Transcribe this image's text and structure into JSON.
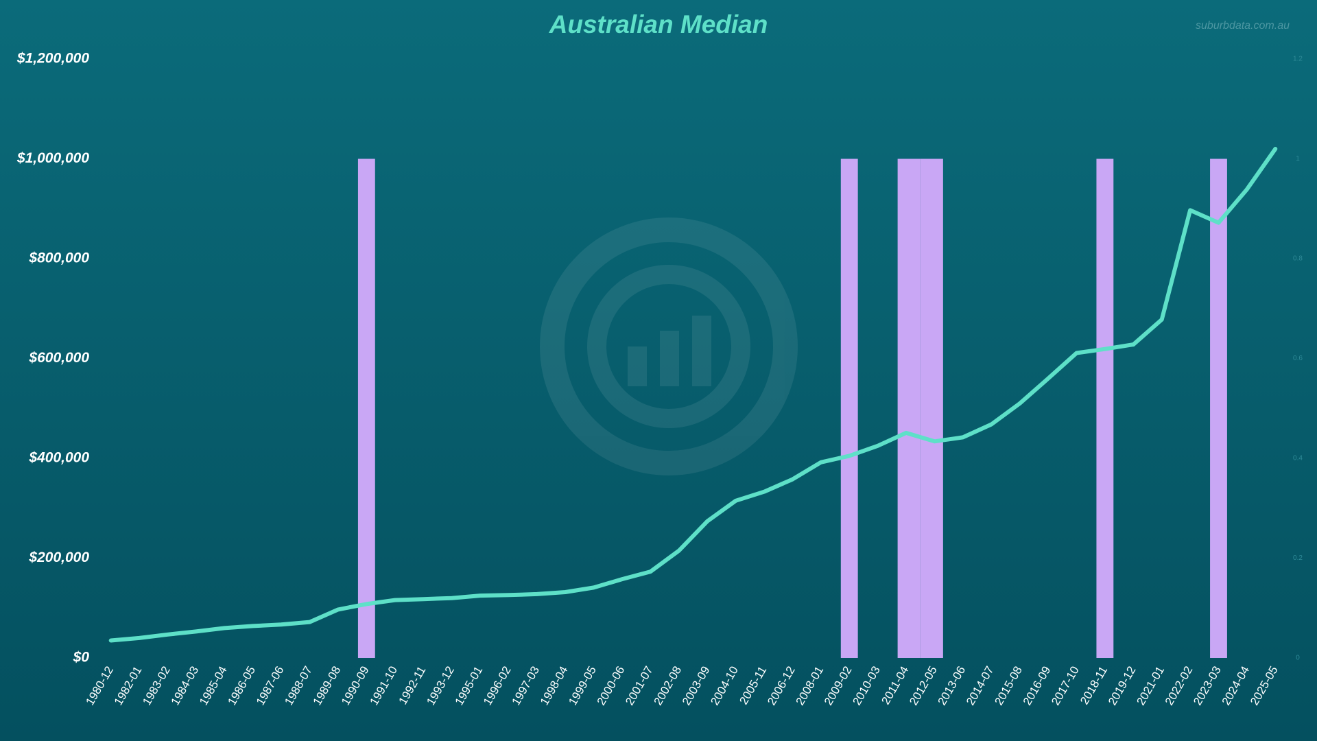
{
  "chart_data": {
    "type": "line",
    "title": "Australian Median",
    "watermark": "suburbdata.com.au",
    "categories": [
      "1980-12",
      "1982-01",
      "1983-02",
      "1984-03",
      "1985-04",
      "1986-05",
      "1987-06",
      "1988-07",
      "1989-08",
      "1990-09",
      "1991-10",
      "1992-11",
      "1993-12",
      "1995-01",
      "1996-02",
      "1997-03",
      "1998-04",
      "1999-05",
      "2000-06",
      "2001-07",
      "2002-08",
      "2003-09",
      "2004-10",
      "2005-11",
      "2006-12",
      "2008-01",
      "2009-02",
      "2010-03",
      "2011-04",
      "2012-05",
      "2013-06",
      "2014-07",
      "2015-08",
      "2016-09",
      "2017-10",
      "2018-11",
      "2019-12",
      "2021-01",
      "2022-02",
      "2023-03",
      "2024-04",
      "2025-05"
    ],
    "series": [
      {
        "type": "line",
        "color": "#5ee0c8",
        "values": [
          35000,
          40000,
          47000,
          53000,
          60000,
          64000,
          67000,
          72000,
          97000,
          108000,
          116000,
          118000,
          120000,
          125000,
          126000,
          128000,
          132000,
          141000,
          158000,
          173000,
          215000,
          274000,
          315000,
          333000,
          358000,
          392000,
          405000,
          425000,
          451000,
          434000,
          442000,
          468000,
          510000,
          560000,
          611000,
          619000,
          628000,
          678000,
          897000,
          872000,
          939000,
          1020000
        ]
      },
      {
        "type": "bar",
        "color": "#c9a7f5",
        "axis": "y2",
        "values": [
          null,
          null,
          null,
          null,
          null,
          null,
          null,
          null,
          null,
          1,
          null,
          null,
          null,
          null,
          null,
          null,
          null,
          null,
          null,
          null,
          null,
          null,
          null,
          null,
          null,
          null,
          1,
          null,
          1,
          1,
          null,
          null,
          null,
          null,
          null,
          1,
          null,
          null,
          null,
          1,
          null,
          null
        ]
      }
    ],
    "ylim": [
      0,
      1200000
    ],
    "yticks": [
      {
        "value": 0,
        "label": "$0"
      },
      {
        "value": 200000,
        "label": "$200,000"
      },
      {
        "value": 400000,
        "label": "$400,000"
      },
      {
        "value": 600000,
        "label": "$600,000"
      },
      {
        "value": 800000,
        "label": "$800,000"
      },
      {
        "value": 1000000,
        "label": "$1,000,000"
      },
      {
        "value": 1200000,
        "label": "$1,200,000"
      }
    ],
    "y2lim": [
      0,
      1.2
    ],
    "y2ticks": [
      0,
      0.2,
      0.4,
      0.6,
      0.8,
      1,
      1.2
    ],
    "grid": false
  }
}
